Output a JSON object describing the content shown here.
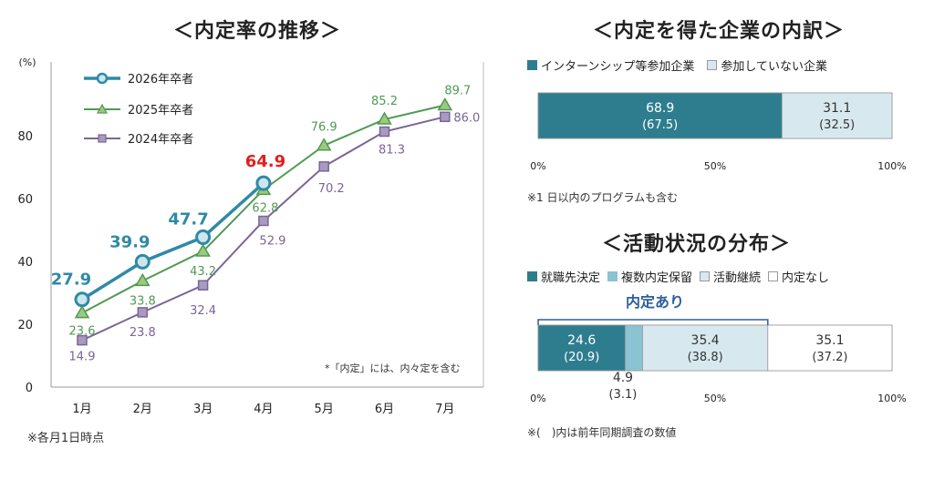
{
  "left": {
    "title": "＜内定率の推移＞",
    "footnote": "※各月1日時点",
    "inner_note": "*「内定」には、内々定を含む",
    "chart_data": {
      "type": "line",
      "ylabel": "(%)",
      "ylim": [
        0,
        100
      ],
      "yticks": [
        0,
        20,
        40,
        60,
        80
      ],
      "categories": [
        "1月",
        "2月",
        "3月",
        "4月",
        "5月",
        "6月",
        "7月"
      ],
      "series": [
        {
          "name": "2026年卒者",
          "color": "#2f8aa6",
          "values": [
            27.9,
            39.9,
            47.7,
            64.9,
            null,
            null,
            null
          ],
          "labels": [
            "27.9",
            "39.9",
            "47.7",
            "64.9",
            "",
            "",
            ""
          ]
        },
        {
          "name": "2025年卒者",
          "color": "#4f9a52",
          "values": [
            23.6,
            33.8,
            43.2,
            62.8,
            76.9,
            85.2,
            89.7
          ],
          "labels": [
            "23.6",
            "33.8",
            "43.2",
            "62.8",
            "76.9",
            "85.2",
            "89.7"
          ]
        },
        {
          "name": "2024年卒者",
          "color": "#7a6596",
          "values": [
            14.9,
            23.8,
            32.4,
            52.9,
            70.2,
            81.3,
            86.0
          ],
          "labels": [
            "14.9",
            "23.8",
            "32.4",
            "52.9",
            "70.2",
            "81.3",
            "86.0"
          ]
        }
      ],
      "highlight_color": "#e02020",
      "zero_label": "0"
    }
  },
  "top_right": {
    "title": "＜内定を得た企業の内訳＞",
    "footnote": "※1 日以内のプログラムも含む",
    "chart_data": {
      "type": "bar",
      "orientation": "stacked-horizontal",
      "xlim": [
        0,
        100
      ],
      "xtick_labels": [
        "0%",
        "50%",
        "100%"
      ],
      "segments": [
        {
          "name": "インターンシップ等参加企業",
          "value": 68.9,
          "prev": "(67.5)",
          "label": "68.9",
          "color": "#2e7d8f"
        },
        {
          "name": "参加していない企業",
          "value": 31.1,
          "prev": "(32.5)",
          "label": "31.1",
          "color": "#d7e9ef"
        }
      ]
    }
  },
  "bottom_right": {
    "title": "＜活動状況の分布＞",
    "bracket_label": "内定あり",
    "footnote": "※(　)内は前年同期調査の数値",
    "chart_data": {
      "type": "bar",
      "orientation": "stacked-horizontal",
      "xlim": [
        0,
        100
      ],
      "xtick_labels": [
        "0%",
        "50%",
        "100%"
      ],
      "segments": [
        {
          "name": "就職先決定",
          "value": 24.6,
          "prev": "(20.9)",
          "label": "24.6",
          "color": "#2e7d8f"
        },
        {
          "name": "複数内定保留",
          "value": 4.9,
          "prev": "(3.1)",
          "label": "4.9",
          "color": "#8cc3d2"
        },
        {
          "name": "活動継続",
          "value": 35.4,
          "prev": "(38.8)",
          "label": "35.4",
          "color": "#d7e9ef"
        },
        {
          "name": "内定なし",
          "value": 35.1,
          "prev": "(37.2)",
          "label": "35.1",
          "color": "#ffffff"
        }
      ]
    }
  }
}
